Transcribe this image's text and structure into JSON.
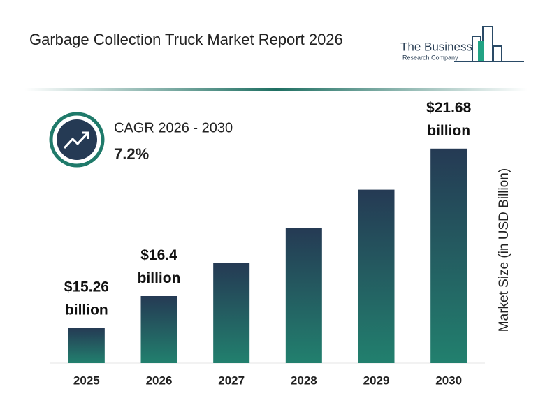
{
  "header": {
    "title": "Garbage Collection Truck Market Report 2026",
    "logo_line1": "The Business",
    "logo_line2": "Research Company"
  },
  "callout": {
    "label": "CAGR 2026 - 2030",
    "value": "7.2%"
  },
  "chart_data": {
    "type": "bar",
    "y_axis_label": "Market Size (in USD Billion)",
    "categories": [
      "2025",
      "2026",
      "2027",
      "2028",
      "2029",
      "2030"
    ],
    "values": [
      15.26,
      16.4,
      17.58,
      18.85,
      20.21,
      21.68
    ],
    "value_labels": [
      "$15.26 billion",
      "$16.4 billion",
      null,
      null,
      null,
      "$21.68 billion"
    ],
    "gradient": [
      "#253a54",
      "#22806e"
    ],
    "ylim": [
      14,
      22
    ]
  }
}
